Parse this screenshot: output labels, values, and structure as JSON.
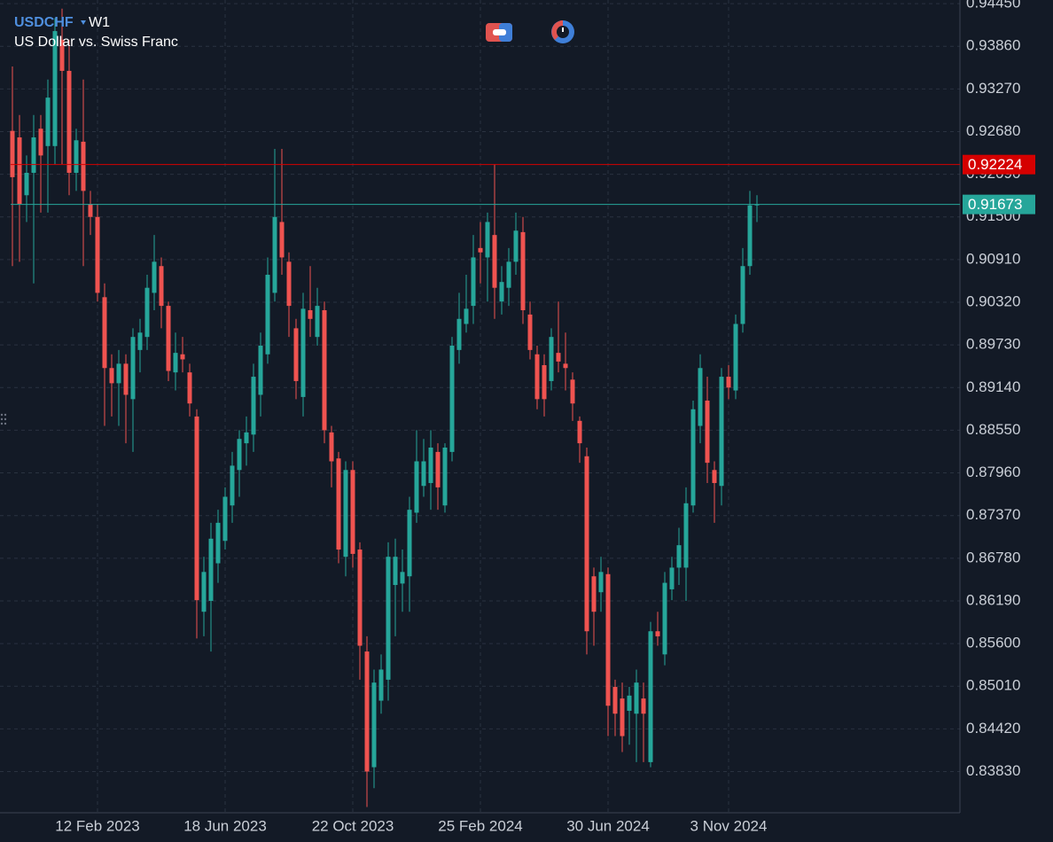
{
  "chart_data": {
    "type": "candlestick",
    "symbol": "USDCHF",
    "timeframe": "W1",
    "subtitle": "US Dollar vs. Swiss Franc",
    "up_color": "#26a69a",
    "down_color": "#ef5350",
    "grid": true,
    "open": [
      0.9269,
      0.926,
      0.918,
      0.9211,
      0.9272,
      0.9248,
      0.9248,
      0.9395,
      0.9352,
      0.9211,
      0.9254,
      0.9168,
      0.915,
      0.9039,
      0.8941,
      0.892,
      0.8947,
      0.8898,
      0.8966,
      0.8984,
      0.9045,
      0.9082,
      0.9027,
      0.8935,
      0.896,
      0.8935,
      0.8874,
      0.8604,
      0.8619,
      0.8671,
      0.8702,
      0.8751,
      0.88,
      0.8837,
      0.8849,
      0.8904,
      0.896,
      0.9045,
      0.9143,
      0.9088,
      0.8996,
      0.8901,
      0.9021,
      0.8984,
      0.9021,
      0.8852,
      0.8816,
      0.868,
      0.88,
      0.869,
      0.8549,
      0.8389,
      0.8481,
      0.851,
      0.8641,
      0.8643,
      0.8653,
      0.8741,
      0.8778,
      0.8782,
      0.8825,
      0.8751,
      0.8825,
      0.8966,
      0.9002,
      0.9027,
      0.9107,
      0.9094,
      0.9125,
      0.9033,
      0.9052,
      0.9088,
      0.9129,
      0.9015,
      0.896,
      0.8945,
      0.8923,
      0.8962,
      0.8947,
      0.8925,
      0.8868,
      0.8819,
      0.8653,
      0.8631,
      0.8656,
      0.85,
      0.8484,
      0.8467,
      0.8463,
      0.8484,
      0.8396,
      0.8577,
      0.8545,
      0.8635,
      0.8665,
      0.8665,
      0.8751,
      0.8861,
      0.8896,
      0.88,
      0.8778,
      0.8929,
      0.891,
      0.9002,
      0.9082,
      0.9166
    ],
    "high": [
      0.9358,
      0.9291,
      0.9235,
      0.9291,
      0.9291,
      0.934,
      0.9425,
      0.9438,
      0.9395,
      0.9272,
      0.934,
      0.9186,
      0.9168,
      0.9058,
      0.896,
      0.8966,
      0.896,
      0.8996,
      0.9009,
      0.907,
      0.9125,
      0.9094,
      0.9033,
      0.899,
      0.8984,
      0.8947,
      0.8884,
      0.868,
      0.8727,
      0.8745,
      0.8776,
      0.8825,
      0.8855,
      0.8874,
      0.8947,
      0.899,
      0.9094,
      0.9244,
      0.9244,
      0.9101,
      0.9009,
      0.9045,
      0.9082,
      0.9052,
      0.9033,
      0.8861,
      0.8825,
      0.8812,
      0.8812,
      0.87,
      0.857,
      0.8524,
      0.8545,
      0.87,
      0.8705,
      0.869,
      0.8763,
      0.8855,
      0.8843,
      0.8855,
      0.8837,
      0.8837,
      0.8984,
      0.9045,
      0.907,
      0.9125,
      0.9143,
      0.9156,
      0.9223,
      0.9082,
      0.9107,
      0.9156,
      0.915,
      0.9033,
      0.8972,
      0.896,
      0.8996,
      0.9033,
      0.899,
      0.8935,
      0.8874,
      0.8831,
      0.8665,
      0.868,
      0.8665,
      0.851,
      0.8506,
      0.85,
      0.8524,
      0.8506,
      0.859,
      0.8604,
      0.8659,
      0.868,
      0.872,
      0.8776,
      0.8896,
      0.896,
      0.8929,
      0.8812,
      0.8941,
      0.8945,
      0.9015,
      0.9107,
      0.9186,
      0.918
    ],
    "low": [
      0.9082,
      0.9088,
      0.9143,
      0.9058,
      0.9156,
      0.9156,
      0.9223,
      0.9223,
      0.918,
      0.9186,
      0.9082,
      0.9125,
      0.9033,
      0.8861,
      0.8874,
      0.8861,
      0.8837,
      0.8825,
      0.8935,
      0.8966,
      0.9021,
      0.8996,
      0.8923,
      0.891,
      0.8935,
      0.8874,
      0.8567,
      0.857,
      0.8549,
      0.8644,
      0.869,
      0.8727,
      0.8763,
      0.8806,
      0.8825,
      0.8874,
      0.8947,
      0.9033,
      0.907,
      0.8984,
      0.8898,
      0.8874,
      0.8984,
      0.8972,
      0.8837,
      0.8776,
      0.8671,
      0.8653,
      0.8665,
      0.851,
      0.8334,
      0.836,
      0.8463,
      0.8481,
      0.857,
      0.8604,
      0.8604,
      0.8727,
      0.8763,
      0.8745,
      0.8745,
      0.8741,
      0.8812,
      0.8947,
      0.899,
      0.9002,
      0.9058,
      0.9033,
      0.9009,
      0.9015,
      0.9027,
      0.907,
      0.9002,
      0.8953,
      0.8884,
      0.8874,
      0.891,
      0.8935,
      0.891,
      0.8868,
      0.881,
      0.8545,
      0.8557,
      0.8604,
      0.8432,
      0.8432,
      0.841,
      0.842,
      0.8396,
      0.8396,
      0.8389,
      0.8557,
      0.853,
      0.862,
      0.8641,
      0.8619,
      0.8741,
      0.8837,
      0.8782,
      0.8727,
      0.8751,
      0.8898,
      0.8898,
      0.899,
      0.907,
      0.9143
    ],
    "close": [
      0.9205,
      0.9168,
      0.9211,
      0.926,
      0.9235,
      0.9315,
      0.9407,
      0.9352,
      0.9211,
      0.9256,
      0.9186,
      0.915,
      0.9045,
      0.8941,
      0.892,
      0.8947,
      0.8904,
      0.8984,
      0.899,
      0.9052,
      0.9088,
      0.9027,
      0.8937,
      0.8962,
      0.8953,
      0.8892,
      0.862,
      0.8659,
      0.8705,
      0.8727,
      0.8763,
      0.8806,
      0.8843,
      0.8852,
      0.8929,
      0.8972,
      0.907,
      0.915,
      0.9094,
      0.9027,
      0.8923,
      0.9023,
      0.9009,
      0.9027,
      0.8855,
      0.8812,
      0.869,
      0.88,
      0.8684,
      0.8557,
      0.8383,
      0.8506,
      0.8524,
      0.868,
      0.868,
      0.8659,
      0.8745,
      0.8812,
      0.8812,
      0.8831,
      0.8776,
      0.8831,
      0.8972,
      0.9009,
      0.9023,
      0.9094,
      0.9101,
      0.9143,
      0.9052,
      0.906,
      0.9088,
      0.9131,
      0.9021,
      0.8966,
      0.8898,
      0.8898,
      0.8984,
      0.895,
      0.8941,
      0.8892,
      0.8837,
      0.8577,
      0.8604,
      0.8659,
      0.8474,
      0.8463,
      0.8432,
      0.8488,
      0.8506,
      0.8463,
      0.8577,
      0.857,
      0.8644,
      0.8665,
      0.8696,
      0.8754,
      0.8884,
      0.8941,
      0.881,
      0.8782,
      0.8929,
      0.8914,
      0.9002,
      0.9082,
      0.9166,
      0.91673
    ],
    "ylim": [
      0.8326,
      0.945
    ],
    "yticks": [
      {
        "value": 0.9445,
        "label": "0.94450"
      },
      {
        "value": 0.9386,
        "label": "0.93860"
      },
      {
        "value": 0.9327,
        "label": "0.93270"
      },
      {
        "value": 0.9268,
        "label": "0.92680"
      },
      {
        "value": 0.9209,
        "label": "0.92090"
      },
      {
        "value": 0.915,
        "label": "0.91500"
      },
      {
        "value": 0.9091,
        "label": "0.90910"
      },
      {
        "value": 0.9032,
        "label": "0.90320"
      },
      {
        "value": 0.8973,
        "label": "0.89730"
      },
      {
        "value": 0.8914,
        "label": "0.89140"
      },
      {
        "value": 0.8855,
        "label": "0.88550"
      },
      {
        "value": 0.8796,
        "label": "0.87960"
      },
      {
        "value": 0.8737,
        "label": "0.87370"
      },
      {
        "value": 0.8678,
        "label": "0.86780"
      },
      {
        "value": 0.8619,
        "label": "0.86190"
      },
      {
        "value": 0.856,
        "label": "0.85600"
      },
      {
        "value": 0.8501,
        "label": "0.85010"
      },
      {
        "value": 0.8442,
        "label": "0.84420"
      },
      {
        "value": 0.8383,
        "label": "0.83830"
      }
    ],
    "xticks": [
      {
        "value": 12,
        "label": "12 Feb 2023"
      },
      {
        "value": 30,
        "label": "18 Jun 2023"
      },
      {
        "value": 48,
        "label": "22 Oct 2023"
      },
      {
        "value": 66,
        "label": "25 Feb 2024"
      },
      {
        "value": 84,
        "label": "30 Jun 2024"
      },
      {
        "value": 101,
        "label": "3 Nov 2024"
      }
    ],
    "price_lines": [
      {
        "value": 0.92224,
        "color": "#d50000"
      },
      {
        "value": 0.91673,
        "color": "#26a69a"
      }
    ]
  }
}
